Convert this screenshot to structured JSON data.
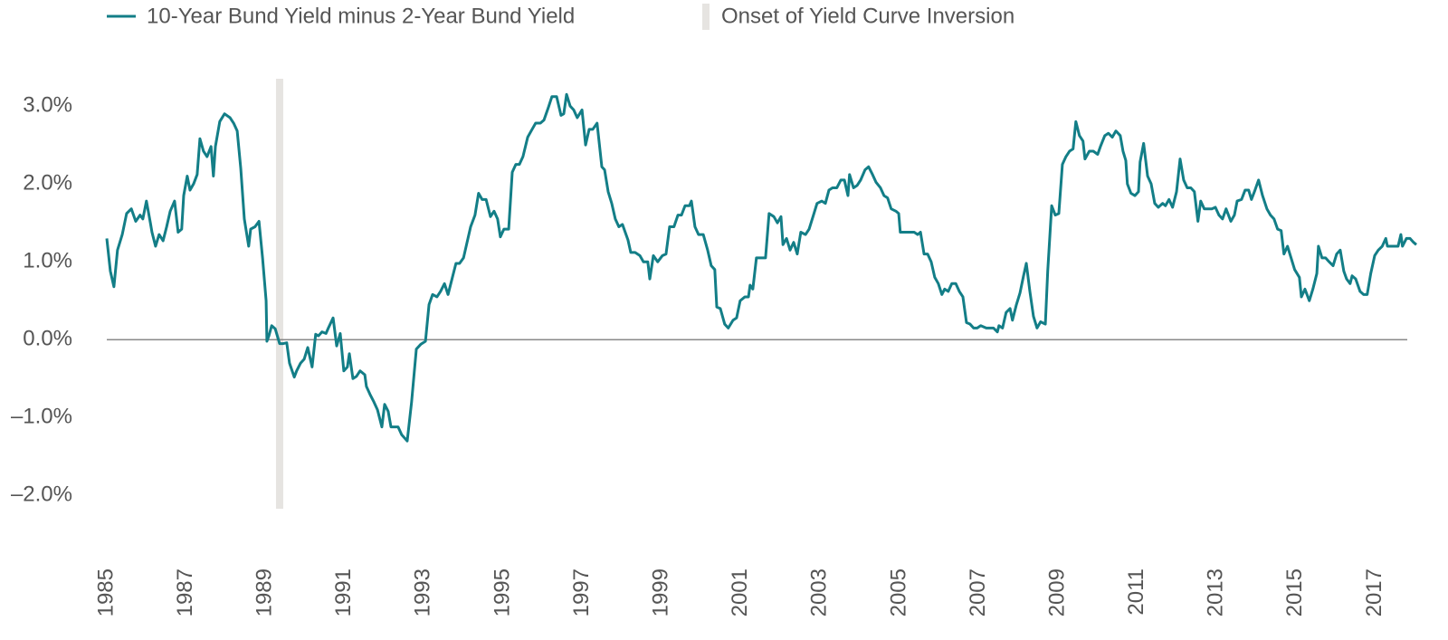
{
  "chart_data": {
    "type": "line",
    "x": [
      1985.0,
      1985.09,
      1985.18,
      1985.27,
      1985.39,
      1985.5,
      1985.62,
      1985.73,
      1985.84,
      1985.91,
      1986.0,
      1986.1,
      1986.14,
      1986.23,
      1986.32,
      1986.42,
      1986.51,
      1986.6,
      1986.71,
      1986.8,
      1986.89,
      1986.94,
      1987.03,
      1987.1,
      1987.19,
      1987.28,
      1987.35,
      1987.44,
      1987.53,
      1987.63,
      1987.69,
      1987.74,
      1987.85,
      1987.97,
      1988.11,
      1988.2,
      1988.29,
      1988.38,
      1988.47,
      1988.58,
      1988.63,
      1988.74,
      1988.84,
      1988.93,
      1989.02,
      1989.04,
      1989.09,
      1989.16,
      1989.25,
      1989.36,
      1989.45,
      1989.54,
      1989.61,
      1989.73,
      1989.79,
      1989.89,
      1989.98,
      1990.07,
      1990.18,
      1990.27,
      1990.34,
      1990.43,
      1990.53,
      1990.59,
      1990.71,
      1990.8,
      1990.89,
      1990.98,
      1991.07,
      1991.12,
      1991.21,
      1991.3,
      1991.39,
      1991.51,
      1991.55,
      1991.64,
      1991.74,
      1991.83,
      1991.94,
      1992.01,
      1992.1,
      1992.17,
      1992.28,
      1992.35,
      1992.44,
      1992.58,
      1992.69,
      1992.81,
      1992.92,
      1993.04,
      1993.13,
      1993.22,
      1993.33,
      1993.42,
      1993.52,
      1993.61,
      1993.72,
      1993.81,
      1993.9,
      1994.0,
      1994.09,
      1994.18,
      1994.29,
      1994.38,
      1994.47,
      1994.57,
      1994.68,
      1994.77,
      1994.86,
      1994.93,
      1995.02,
      1995.14,
      1995.23,
      1995.32,
      1995.41,
      1995.5,
      1995.62,
      1995.73,
      1995.82,
      1995.94,
      1996.03,
      1996.14,
      1996.23,
      1996.35,
      1996.46,
      1996.53,
      1996.6,
      1996.69,
      1996.78,
      1996.87,
      1996.99,
      1997.08,
      1997.17,
      1997.26,
      1997.37,
      1997.49,
      1997.56,
      1997.65,
      1997.74,
      1997.83,
      1997.92,
      1998.01,
      1998.15,
      1998.22,
      1998.33,
      1998.45,
      1998.54,
      1998.65,
      1998.7,
      1998.79,
      1998.9,
      1999.02,
      1999.11,
      1999.2,
      1999.31,
      1999.41,
      1999.5,
      1999.59,
      1999.7,
      1999.75,
      1999.84,
      1999.93,
      2000.05,
      2000.16,
      2000.25,
      2000.34,
      2000.39,
      2000.48,
      2000.59,
      2000.68,
      2000.8,
      2000.89,
      2000.98,
      2001.1,
      2001.19,
      2001.23,
      2001.3,
      2001.39,
      2001.51,
      2001.62,
      2001.71,
      2001.83,
      2001.92,
      2002.01,
      2002.06,
      2002.15,
      2002.24,
      2002.33,
      2002.42,
      2002.51,
      2002.63,
      2002.72,
      2002.83,
      2002.92,
      2003.04,
      2003.13,
      2003.22,
      2003.31,
      2003.42,
      2003.52,
      2003.61,
      2003.7,
      2003.74,
      2003.84,
      2003.93,
      2004.02,
      2004.13,
      2004.22,
      2004.32,
      2004.41,
      2004.52,
      2004.61,
      2004.7,
      2004.79,
      2004.91,
      2004.98,
      2005.02,
      2005.14,
      2005.23,
      2005.37,
      2005.46,
      2005.53,
      2005.62,
      2005.71,
      2005.8,
      2005.89,
      2005.98,
      2006.07,
      2006.14,
      2006.23,
      2006.32,
      2006.42,
      2006.51,
      2006.6,
      2006.69,
      2006.78,
      2006.87,
      2006.96,
      2007.05,
      2007.19,
      2007.37,
      2007.47,
      2007.51,
      2007.6,
      2007.69,
      2007.79,
      2007.85,
      2007.95,
      2008.04,
      2008.13,
      2008.2,
      2008.29,
      2008.38,
      2008.47,
      2008.56,
      2008.68,
      2008.74,
      2008.84,
      2008.93,
      2009.02,
      2009.11,
      2009.2,
      2009.29,
      2009.38,
      2009.45,
      2009.54,
      2009.63,
      2009.68,
      2009.79,
      2009.89,
      2010.0,
      2010.07,
      2010.18,
      2010.27,
      2010.37,
      2010.46,
      2010.57,
      2010.64,
      2010.71,
      2010.75,
      2010.84,
      2010.94,
      2011.03,
      2011.07,
      2011.16,
      2011.26,
      2011.35,
      2011.44,
      2011.53,
      2011.64,
      2011.71,
      2011.8,
      2011.89,
      2011.99,
      2012.08,
      2012.17,
      2012.26,
      2012.35,
      2012.44,
      2012.53,
      2012.6,
      2012.69,
      2012.88,
      2012.97,
      2013.06,
      2013.15,
      2013.24,
      2013.36,
      2013.45,
      2013.52,
      2013.63,
      2013.72,
      2013.81,
      2013.88,
      2013.97,
      2014.06,
      2014.16,
      2014.27,
      2014.36,
      2014.45,
      2014.54,
      2014.63,
      2014.7,
      2014.79,
      2014.88,
      2014.97,
      2015.09,
      2015.14,
      2015.23,
      2015.34,
      2015.43,
      2015.53,
      2015.57,
      2015.66,
      2015.75,
      2015.84,
      2015.94,
      2016.03,
      2016.12,
      2016.21,
      2016.28,
      2016.37,
      2016.42,
      2016.51,
      2016.62,
      2016.71,
      2016.8,
      2016.89,
      2016.99,
      2017.08,
      2017.18,
      2017.27,
      2017.31,
      2017.49,
      2017.58,
      2017.65,
      2017.69,
      2017.79,
      2017.88,
      2017.97,
      2018.04
    ],
    "series": [
      {
        "name": "10-Year Bund Yield minus 2-Year Bund Yield",
        "color": "#137e87",
        "values": [
          1.3,
          0.88,
          0.68,
          1.15,
          1.35,
          1.62,
          1.68,
          1.52,
          1.6,
          1.55,
          1.78,
          1.5,
          1.38,
          1.2,
          1.35,
          1.27,
          1.45,
          1.65,
          1.78,
          1.38,
          1.42,
          1.85,
          2.1,
          1.92,
          2.0,
          2.12,
          2.58,
          2.42,
          2.35,
          2.48,
          2.1,
          2.48,
          2.8,
          2.9,
          2.85,
          2.78,
          2.68,
          2.2,
          1.55,
          1.2,
          1.42,
          1.45,
          1.52,
          1.05,
          0.5,
          -0.02,
          0.05,
          0.18,
          0.14,
          -0.05,
          -0.05,
          -0.04,
          -0.3,
          -0.48,
          -0.4,
          -0.3,
          -0.25,
          -0.1,
          -0.35,
          0.07,
          0.05,
          0.1,
          0.08,
          0.15,
          0.28,
          -0.08,
          0.08,
          -0.4,
          -0.35,
          -0.18,
          -0.5,
          -0.47,
          -0.4,
          -0.45,
          -0.6,
          -0.7,
          -0.8,
          -0.9,
          -1.12,
          -0.83,
          -0.92,
          -1.12,
          -1.12,
          -1.12,
          -1.22,
          -1.3,
          -0.8,
          -0.12,
          -0.06,
          -0.02,
          0.45,
          0.58,
          0.55,
          0.62,
          0.72,
          0.58,
          0.8,
          0.98,
          0.98,
          1.05,
          1.25,
          1.45,
          1.6,
          1.88,
          1.8,
          1.8,
          1.58,
          1.65,
          1.55,
          1.32,
          1.42,
          1.42,
          2.15,
          2.25,
          2.25,
          2.35,
          2.6,
          2.7,
          2.78,
          2.78,
          2.82,
          2.98,
          3.12,
          3.12,
          2.88,
          2.9,
          3.15,
          3.0,
          2.95,
          2.85,
          2.95,
          2.5,
          2.7,
          2.7,
          2.78,
          2.22,
          2.18,
          1.9,
          1.75,
          1.55,
          1.45,
          1.48,
          1.28,
          1.12,
          1.12,
          1.08,
          1.0,
          1.0,
          0.78,
          1.08,
          1.0,
          1.08,
          1.1,
          1.45,
          1.45,
          1.6,
          1.6,
          1.72,
          1.72,
          1.78,
          1.45,
          1.35,
          1.35,
          1.15,
          0.95,
          0.9,
          0.42,
          0.4,
          0.2,
          0.15,
          0.25,
          0.28,
          0.5,
          0.55,
          0.55,
          0.7,
          0.65,
          1.05,
          1.05,
          1.05,
          1.62,
          1.58,
          1.5,
          1.58,
          1.22,
          1.3,
          1.15,
          1.25,
          1.1,
          1.38,
          1.35,
          1.42,
          1.6,
          1.75,
          1.78,
          1.75,
          1.92,
          1.95,
          1.95,
          2.05,
          2.05,
          1.85,
          2.12,
          1.95,
          1.98,
          2.05,
          2.18,
          2.22,
          2.12,
          2.02,
          1.95,
          1.85,
          1.82,
          1.68,
          1.65,
          1.62,
          1.38,
          1.38,
          1.38,
          1.38,
          1.35,
          1.38,
          1.1,
          1.1,
          1.0,
          0.8,
          0.72,
          0.58,
          0.65,
          0.62,
          0.72,
          0.72,
          0.62,
          0.55,
          0.22,
          0.2,
          0.15,
          0.15,
          0.18,
          0.15,
          0.15,
          0.1,
          0.18,
          0.15,
          0.35,
          0.4,
          0.25,
          0.45,
          0.6,
          0.82,
          0.98,
          0.62,
          0.3,
          0.15,
          0.23,
          0.2,
          0.88,
          1.72,
          1.6,
          1.62,
          2.25,
          2.35,
          2.42,
          2.45,
          2.8,
          2.62,
          2.55,
          2.32,
          2.42,
          2.42,
          2.38,
          2.48,
          2.62,
          2.65,
          2.6,
          2.68,
          2.62,
          2.42,
          2.3,
          2.0,
          1.88,
          1.85,
          1.9,
          2.28,
          2.52,
          2.1,
          2.0,
          1.75,
          1.7,
          1.75,
          1.72,
          1.8,
          1.7,
          1.9,
          2.32,
          2.05,
          1.95,
          1.95,
          1.9,
          1.52,
          1.78,
          1.68,
          1.68,
          1.7,
          1.6,
          1.55,
          1.68,
          1.52,
          1.6,
          1.78,
          1.8,
          1.92,
          1.92,
          1.8,
          1.92,
          2.05,
          1.85,
          1.68,
          1.6,
          1.55,
          1.42,
          1.4,
          1.1,
          1.2,
          1.05,
          0.9,
          0.8,
          0.55,
          0.65,
          0.5,
          0.65,
          0.85,
          1.2,
          1.05,
          1.05,
          1.0,
          0.95,
          1.1,
          1.15,
          0.88,
          0.78,
          0.72,
          0.82,
          0.78,
          0.62,
          0.58,
          0.58,
          0.85,
          1.08,
          1.15,
          1.2,
          1.3,
          1.2,
          1.2,
          1.2,
          1.35,
          1.2,
          1.3,
          1.3,
          1.25,
          1.22
        ]
      }
    ],
    "inversion_onset": {
      "name": "Onset of Yield Curve Inversion",
      "color": "#e6e4e1",
      "x": [
        1989.36
      ]
    },
    "xlim": [
      1985,
      2018.04
    ],
    "xticks": [
      1985,
      1987,
      1989,
      1991,
      1993,
      1995,
      1997,
      1999,
      2001,
      2003,
      2005,
      2007,
      2009,
      2011,
      2013,
      2015,
      2017
    ],
    "ylim": [
      -2.17,
      3.35
    ],
    "yticks": [
      {
        "value": -2,
        "label": "–2.0%"
      },
      {
        "value": -1,
        "label": "–1.0%"
      },
      {
        "value": 0,
        "label": "0.0%"
      },
      {
        "value": 1,
        "label": "1.0%"
      },
      {
        "value": 2,
        "label": "2.0%"
      },
      {
        "value": 3,
        "label": "3.0%"
      }
    ],
    "zero_line_color": "#888888"
  }
}
